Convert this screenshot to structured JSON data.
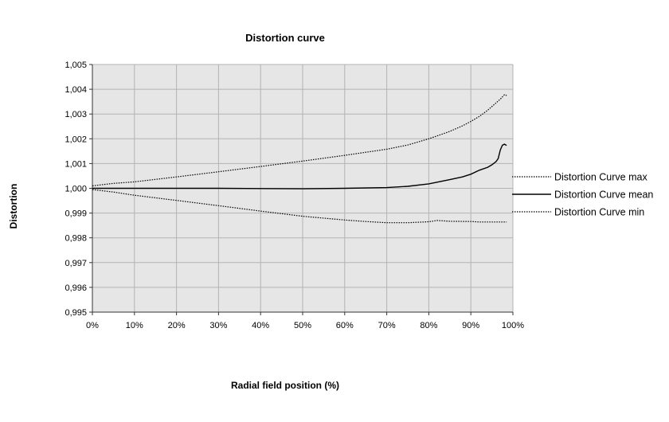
{
  "chart_data": {
    "type": "line",
    "title": "Distortion curve",
    "xlabel": "Radial field position (%)",
    "ylabel": "Distortion",
    "xlim": [
      0,
      100
    ],
    "ylim": [
      0.995,
      1.005
    ],
    "x_ticks": [
      0,
      10,
      20,
      30,
      40,
      50,
      60,
      70,
      80,
      90,
      100
    ],
    "x_tick_labels": [
      "0%",
      "10%",
      "20%",
      "30%",
      "40%",
      "50%",
      "60%",
      "70%",
      "80%",
      "90%",
      "100%"
    ],
    "y_ticks": [
      0.995,
      0.996,
      0.997,
      0.998,
      0.999,
      1.0,
      1.001,
      1.002,
      1.003,
      1.004,
      1.005
    ],
    "y_tick_labels": [
      "0,995",
      "0,996",
      "0,997",
      "0,998",
      "0,999",
      "1,000",
      "1,001",
      "1,002",
      "1,003",
      "1,004",
      "1,005"
    ],
    "grid": true,
    "legend_position": "right",
    "plot_background": "#e6e6e6",
    "grid_color": "#b3b3b3",
    "series": [
      {
        "name": "Distortion Curve max",
        "style": "dotted",
        "x": [
          0,
          5,
          10,
          20,
          30,
          40,
          50,
          60,
          70,
          75,
          80,
          85,
          88,
          90,
          92,
          94,
          96,
          97,
          98,
          98.5
        ],
        "y": [
          1.0001,
          1.0002,
          1.00026,
          1.00046,
          1.00067,
          1.00088,
          1.0011,
          1.00133,
          1.00158,
          1.00175,
          1.002,
          1.0023,
          1.00252,
          1.0027,
          1.0029,
          1.00315,
          1.00345,
          1.0036,
          1.00378,
          1.00375
        ]
      },
      {
        "name": "Distortion Curve mean",
        "style": "solid",
        "x": [
          0,
          10,
          20,
          30,
          40,
          50,
          60,
          70,
          75,
          80,
          85,
          88,
          90,
          92,
          94,
          95,
          96,
          96.5,
          97,
          97.5,
          98,
          98.5
        ],
        "y": [
          1.0,
          1.0,
          1.0,
          1.0,
          0.99999,
          0.99998,
          1.0,
          1.00003,
          1.00008,
          1.00018,
          1.00035,
          1.00046,
          1.00057,
          1.00073,
          1.00085,
          1.00095,
          1.00108,
          1.0012,
          1.00155,
          1.00174,
          1.00178,
          1.00173
        ]
      },
      {
        "name": "Distortion Curve min",
        "style": "dotted",
        "x": [
          0,
          5,
          10,
          20,
          30,
          40,
          50,
          60,
          65,
          70,
          75,
          80,
          82,
          85,
          90,
          92,
          95,
          98.5
        ],
        "y": [
          0.99995,
          0.99985,
          0.99972,
          0.99951,
          0.9993,
          0.99908,
          0.99887,
          0.99872,
          0.99866,
          0.99861,
          0.99861,
          0.99865,
          0.9987,
          0.99867,
          0.99866,
          0.99864,
          0.99864,
          0.99864
        ]
      }
    ]
  }
}
